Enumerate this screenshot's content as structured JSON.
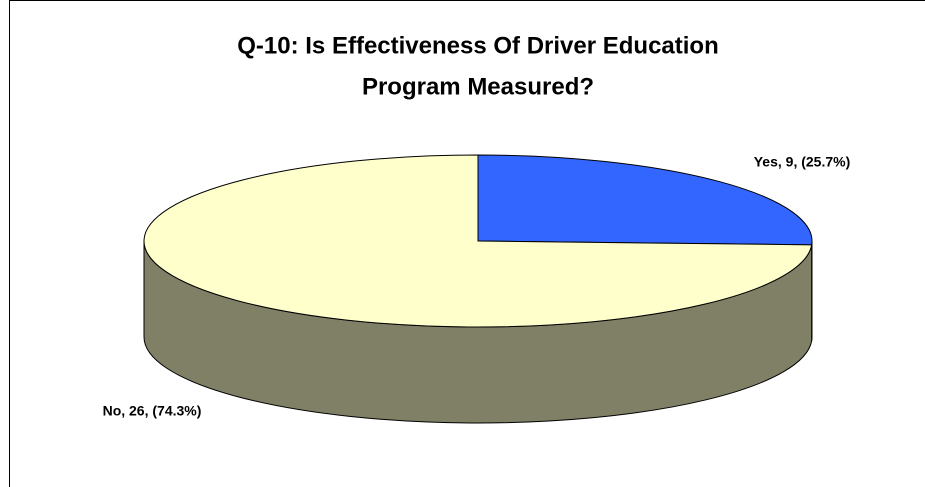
{
  "chart_data": {
    "type": "pie",
    "title": [
      "Q-10: Is Effectiveness Of Driver Education",
      "Program Measured?"
    ],
    "categories": [
      "Yes",
      "No"
    ],
    "values": [
      9,
      26
    ],
    "value_labels": [
      "Yes, 9, (25.7%)",
      "No, 26, (74.3%)"
    ],
    "colors": [
      "#3366ff",
      "#ffffcc"
    ],
    "three_d": true
  }
}
